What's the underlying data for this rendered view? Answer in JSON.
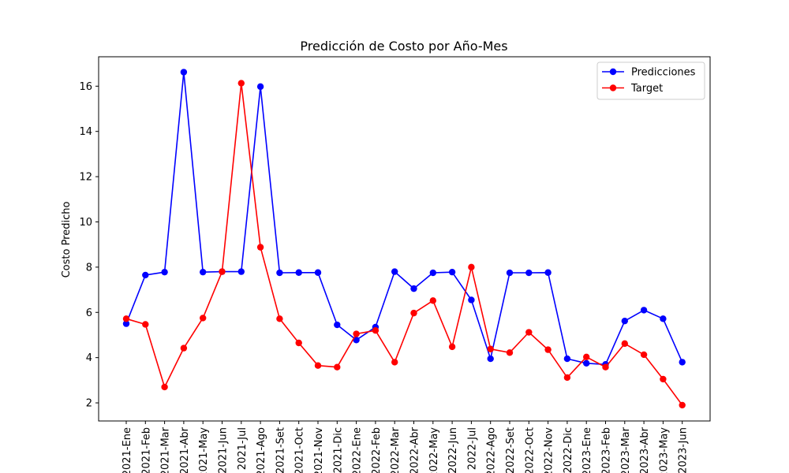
{
  "chart_data": {
    "type": "line",
    "title": "Predicción de Costo por Año-Mes",
    "xlabel": "",
    "ylabel": "Costo Predicho",
    "ylim": [
      1.2,
      17.3
    ],
    "yticks": [
      2,
      4,
      6,
      8,
      10,
      12,
      14,
      16
    ],
    "grid": false,
    "legend_position": "top-right",
    "categories": [
      "2021-Ene",
      "2021-Feb",
      "2021-Mar",
      "2021-Abr",
      "2021-May",
      "2021-Jun",
      "2021-Jul",
      "2021-Ago",
      "2021-Set",
      "2021-Oct",
      "2021-Nov",
      "2021-Dic",
      "2022-Ene",
      "2022-Feb",
      "2022-Mar",
      "2022-Abr",
      "2022-May",
      "2022-Jun",
      "2022-Jul",
      "2022-Ago",
      "2022-Set",
      "2022-Oct",
      "2022-Nov",
      "2022-Dic",
      "2023-Ene",
      "2023-Feb",
      "2023-Mar",
      "2023-Abr",
      "2023-May",
      "2023-Jun"
    ],
    "series": [
      {
        "name": "Predicciones",
        "color": "#0000ff",
        "values": [
          5.5,
          7.65,
          7.78,
          16.62,
          7.78,
          7.8,
          7.8,
          15.98,
          7.75,
          7.76,
          7.76,
          5.45,
          4.78,
          5.35,
          7.8,
          7.05,
          7.75,
          7.78,
          6.55,
          3.95,
          7.75,
          7.75,
          7.76,
          3.95,
          3.75,
          3.7,
          5.62,
          6.1,
          5.72,
          3.8
        ]
      },
      {
        "name": "Target",
        "color": "#ff0000",
        "values": [
          5.72,
          5.47,
          2.7,
          4.42,
          5.75,
          7.8,
          16.13,
          8.88,
          5.72,
          4.65,
          3.65,
          3.58,
          5.05,
          5.2,
          3.8,
          5.97,
          6.52,
          4.48,
          8.0,
          4.38,
          4.22,
          5.12,
          4.35,
          3.12,
          4.03,
          3.58,
          4.62,
          4.13,
          3.05,
          1.9
        ]
      }
    ]
  }
}
